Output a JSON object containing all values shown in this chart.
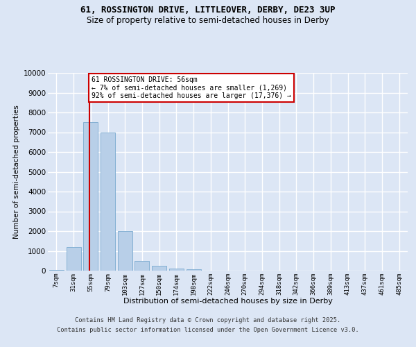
{
  "title_line1": "61, ROSSINGTON DRIVE, LITTLEOVER, DERBY, DE23 3UP",
  "title_line2": "Size of property relative to semi-detached houses in Derby",
  "xlabel": "Distribution of semi-detached houses by size in Derby",
  "ylabel": "Number of semi-detached properties",
  "annotation_line1": "61 ROSSINGTON DRIVE: 56sqm",
  "annotation_line2": "← 7% of semi-detached houses are smaller (1,269)",
  "annotation_line3": "92% of semi-detached houses are larger (17,376) →",
  "categories": [
    "7sqm",
    "31sqm",
    "55sqm",
    "79sqm",
    "103sqm",
    "127sqm",
    "150sqm",
    "174sqm",
    "198sqm",
    "222sqm",
    "246sqm",
    "270sqm",
    "294sqm",
    "318sqm",
    "342sqm",
    "366sqm",
    "389sqm",
    "413sqm",
    "437sqm",
    "461sqm",
    "485sqm"
  ],
  "values": [
    30,
    1200,
    7500,
    7000,
    2000,
    500,
    250,
    100,
    80,
    0,
    0,
    0,
    0,
    0,
    0,
    0,
    0,
    0,
    0,
    0,
    0
  ],
  "bar_color": "#b8cfe8",
  "bar_edge_color": "#7aaad0",
  "vline_color": "#cc0000",
  "vline_x": 1.93,
  "background_color": "#dce6f5",
  "grid_color": "#ffffff",
  "ylim": [
    0,
    10000
  ],
  "yticks": [
    0,
    1000,
    2000,
    3000,
    4000,
    5000,
    6000,
    7000,
    8000,
    9000,
    10000
  ],
  "footer_line1": "Contains HM Land Registry data © Crown copyright and database right 2025.",
  "footer_line2": "Contains public sector information licensed under the Open Government Licence v3.0."
}
